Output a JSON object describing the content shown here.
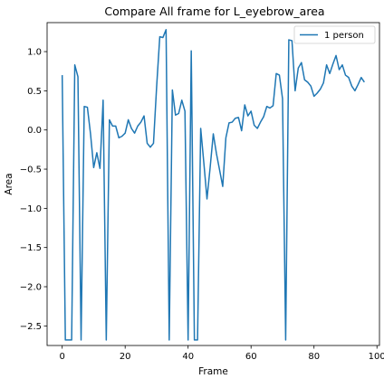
{
  "chart_data": {
    "type": "line",
    "title": "Compare All frame for L_eyebrow_area",
    "xlabel": "Frame",
    "ylabel": "Area",
    "xlim": [
      -4.8,
      100.8
    ],
    "ylim": [
      -2.75,
      1.37
    ],
    "xticks": [
      0,
      20,
      40,
      60,
      80,
      100
    ],
    "yticks": [
      -2.5,
      -2.0,
      -1.5,
      -1.0,
      -0.5,
      0.0,
      0.5,
      1.0
    ],
    "ytick_labels": [
      "−2.5",
      "−2.0",
      "−1.5",
      "−1.0",
      "−0.5",
      "0.0",
      "0.5",
      "1.0"
    ],
    "grid": false,
    "legend_position": "upper right",
    "series": [
      {
        "name": "1 person",
        "color": "#1f77b4",
        "x": [
          0,
          1,
          2,
          3,
          4,
          5,
          6,
          7,
          8,
          9,
          10,
          11,
          12,
          13,
          14,
          15,
          16,
          17,
          18,
          19,
          20,
          21,
          22,
          23,
          24,
          25,
          26,
          27,
          28,
          29,
          30,
          31,
          32,
          33,
          34,
          35,
          36,
          37,
          38,
          39,
          40,
          41,
          42,
          43,
          44,
          45,
          46,
          47,
          48,
          49,
          50,
          51,
          52,
          53,
          54,
          55,
          56,
          57,
          58,
          59,
          60,
          61,
          62,
          63,
          64,
          65,
          66,
          67,
          68,
          69,
          70,
          71,
          72,
          73,
          74,
          75,
          76,
          77,
          78,
          79,
          80,
          81,
          82,
          83,
          84,
          85,
          86,
          87,
          88,
          89,
          90,
          91,
          92,
          93,
          94,
          95,
          96
        ],
        "y": [
          0.7,
          -2.68,
          -2.68,
          -2.68,
          0.83,
          0.68,
          -2.68,
          0.3,
          0.29,
          -0.05,
          -0.48,
          -0.29,
          -0.49,
          0.38,
          -2.68,
          0.13,
          0.05,
          0.05,
          -0.1,
          -0.08,
          -0.04,
          0.13,
          0.02,
          -0.04,
          0.05,
          0.1,
          0.18,
          -0.17,
          -0.22,
          -0.17,
          0.55,
          1.19,
          1.18,
          1.28,
          -2.68,
          0.51,
          0.19,
          0.21,
          0.38,
          0.24,
          -2.68,
          1.01,
          -2.68,
          -2.68,
          0.02,
          -0.42,
          -0.88,
          -0.48,
          -0.05,
          -0.3,
          -0.51,
          -0.72,
          -0.1,
          0.09,
          0.1,
          0.15,
          0.16,
          -0.01,
          0.32,
          0.18,
          0.24,
          0.06,
          0.02,
          0.1,
          0.17,
          0.3,
          0.28,
          0.31,
          0.72,
          0.7,
          0.4,
          -2.68,
          1.15,
          1.14,
          0.5,
          0.79,
          0.86,
          0.64,
          0.61,
          0.56,
          0.43,
          0.47,
          0.52,
          0.6,
          0.83,
          0.72,
          0.84,
          0.95,
          0.77,
          0.83,
          0.7,
          0.67,
          0.56,
          0.5,
          0.58,
          0.67,
          0.61
        ]
      }
    ]
  }
}
